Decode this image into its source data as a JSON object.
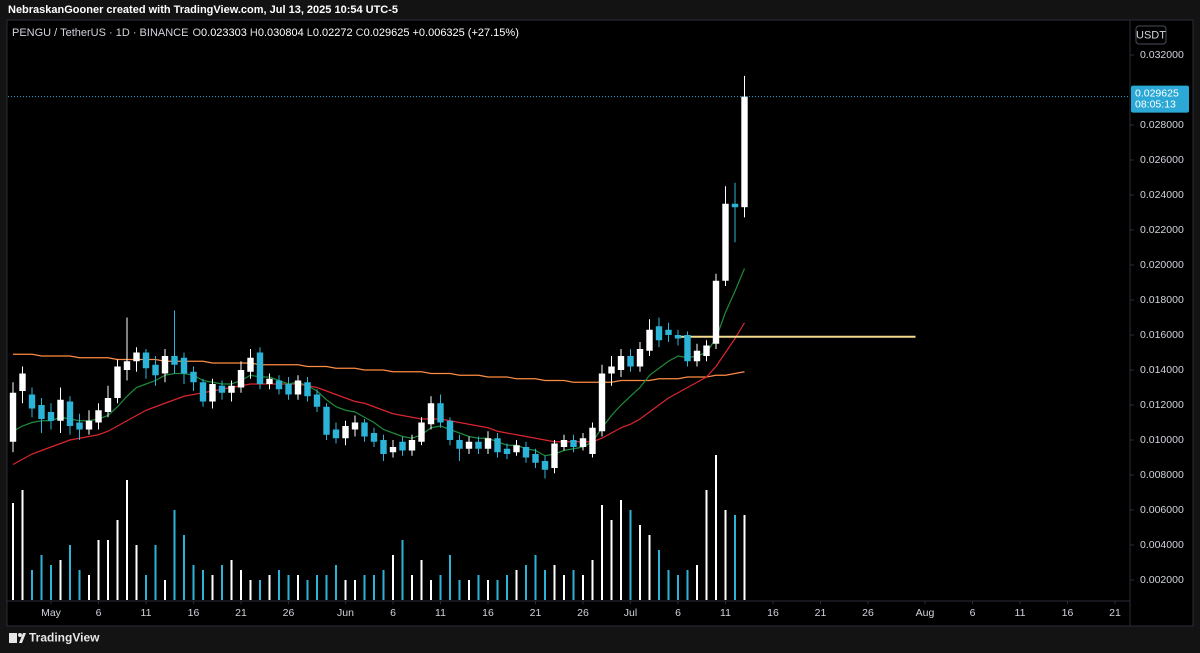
{
  "header": "NebraskanGooner created with TradingView.com, Jul 13, 2025 10:54 UTC-5",
  "currency": "USDT",
  "countdown": "08:05:13",
  "brand": "TradingView",
  "chart_data": {
    "type": "candlestick",
    "legend": {
      "symbol": "PENGU / TetherUS · 1D · BINANCE",
      "labels": [
        "O",
        "H",
        "L",
        "C"
      ],
      "change": "+0.006325",
      "change_pct": "(+27.15%)"
    },
    "x": [
      "2025-04-27",
      "2025-04-28",
      "2025-04-29",
      "2025-04-30",
      "2025-05-01",
      "2025-05-02",
      "2025-05-03",
      "2025-05-04",
      "2025-05-05",
      "2025-05-06",
      "2025-05-07",
      "2025-05-08",
      "2025-05-09",
      "2025-05-10",
      "2025-05-11",
      "2025-05-12",
      "2025-05-13",
      "2025-05-14",
      "2025-05-15",
      "2025-05-16",
      "2025-05-17",
      "2025-05-18",
      "2025-05-19",
      "2025-05-20",
      "2025-05-21",
      "2025-05-22",
      "2025-05-23",
      "2025-05-24",
      "2025-05-25",
      "2025-05-26",
      "2025-05-27",
      "2025-05-28",
      "2025-05-29",
      "2025-05-30",
      "2025-05-31",
      "2025-06-01",
      "2025-06-02",
      "2025-06-03",
      "2025-06-04",
      "2025-06-05",
      "2025-06-06",
      "2025-06-07",
      "2025-06-08",
      "2025-06-09",
      "2025-06-10",
      "2025-06-11",
      "2025-06-12",
      "2025-06-13",
      "2025-06-14",
      "2025-06-15",
      "2025-06-16",
      "2025-06-17",
      "2025-06-18",
      "2025-06-19",
      "2025-06-20",
      "2025-06-21",
      "2025-06-22",
      "2025-06-23",
      "2025-06-24",
      "2025-06-25",
      "2025-06-26",
      "2025-06-27",
      "2025-06-28",
      "2025-06-29",
      "2025-06-30",
      "2025-07-01",
      "2025-07-02",
      "2025-07-03",
      "2025-07-04",
      "2025-07-05",
      "2025-07-06",
      "2025-07-07",
      "2025-07-08",
      "2025-07-09",
      "2025-07-10",
      "2025-07-11",
      "2025-07-12",
      "2025-07-13"
    ],
    "open": [
      0.0099,
      0.0128,
      0.0126,
      0.012,
      0.0116,
      0.0111,
      0.0122,
      0.011,
      0.0106,
      0.011,
      0.0116,
      0.0124,
      0.014,
      0.0145,
      0.015,
      0.0143,
      0.0138,
      0.0148,
      0.0147,
      0.0139,
      0.0133,
      0.0122,
      0.0131,
      0.0127,
      0.013,
      0.0139,
      0.015,
      0.0132,
      0.0134,
      0.0132,
      0.0126,
      0.0133,
      0.0126,
      0.0119,
      0.0106,
      0.0101,
      0.0106,
      0.011,
      0.0104,
      0.01,
      0.0093,
      0.0099,
      0.0094,
      0.0099,
      0.0109,
      0.0121,
      0.0111,
      0.01,
      0.0095,
      0.0099,
      0.0095,
      0.0101,
      0.0095,
      0.0093,
      0.0096,
      0.0092,
      0.0088,
      0.0084,
      0.0096,
      0.01,
      0.0096,
      0.0092,
      0.0105,
      0.0138,
      0.014,
      0.0148,
      0.0142,
      0.0151,
      0.0165,
      0.0163,
      0.016,
      0.016,
      0.0145,
      0.0148,
      0.0155,
      0.0191,
      0.0235,
      0.023303
    ],
    "high": [
      0.0133,
      0.0142,
      0.013,
      0.0124,
      0.0121,
      0.013,
      0.0125,
      0.0115,
      0.0117,
      0.0121,
      0.0131,
      0.0146,
      0.017,
      0.0153,
      0.0152,
      0.0148,
      0.0152,
      0.0174,
      0.015,
      0.0142,
      0.0135,
      0.0135,
      0.0134,
      0.0134,
      0.0145,
      0.0152,
      0.0153,
      0.0138,
      0.0137,
      0.0136,
      0.0137,
      0.0136,
      0.0129,
      0.0121,
      0.011,
      0.0111,
      0.0114,
      0.0112,
      0.0107,
      0.0103,
      0.01,
      0.0102,
      0.0103,
      0.0113,
      0.0125,
      0.0126,
      0.0113,
      0.0103,
      0.0102,
      0.0102,
      0.0105,
      0.0104,
      0.0098,
      0.01,
      0.0099,
      0.0095,
      0.0091,
      0.01,
      0.0103,
      0.0103,
      0.0104,
      0.011,
      0.0143,
      0.0148,
      0.0152,
      0.0152,
      0.0156,
      0.0169,
      0.017,
      0.0167,
      0.0163,
      0.0162,
      0.0155,
      0.0157,
      0.0195,
      0.0245,
      0.0247,
      0.030804
    ],
    "low": [
      0.0093,
      0.0121,
      0.0113,
      0.0104,
      0.0106,
      0.0104,
      0.0103,
      0.01,
      0.0103,
      0.0106,
      0.0113,
      0.0121,
      0.0134,
      0.0139,
      0.0135,
      0.0131,
      0.0133,
      0.0138,
      0.0132,
      0.0128,
      0.0119,
      0.0118,
      0.0123,
      0.0122,
      0.0127,
      0.0135,
      0.0129,
      0.0129,
      0.0126,
      0.0123,
      0.0123,
      0.0122,
      0.0116,
      0.01,
      0.0098,
      0.0097,
      0.0102,
      0.0099,
      0.0096,
      0.0088,
      0.009,
      0.0091,
      0.0091,
      0.0097,
      0.0106,
      0.0107,
      0.0097,
      0.0088,
      0.0092,
      0.0092,
      0.0092,
      0.009,
      0.0089,
      0.0091,
      0.0087,
      0.0084,
      0.0078,
      0.0081,
      0.0094,
      0.0093,
      0.0094,
      0.009,
      0.0102,
      0.0131,
      0.0136,
      0.0139,
      0.0139,
      0.0148,
      0.0153,
      0.0156,
      0.0154,
      0.0142,
      0.0142,
      0.0145,
      0.0152,
      0.0188,
      0.0213,
      0.02272
    ],
    "close": [
      0.0127,
      0.0138,
      0.0118,
      0.0112,
      0.0111,
      0.0123,
      0.0108,
      0.0106,
      0.0111,
      0.0117,
      0.0124,
      0.0142,
      0.0145,
      0.015,
      0.0141,
      0.0137,
      0.0148,
      0.0143,
      0.0138,
      0.0133,
      0.0122,
      0.0132,
      0.0127,
      0.0131,
      0.014,
      0.0147,
      0.0132,
      0.0135,
      0.0129,
      0.0126,
      0.0134,
      0.0125,
      0.0119,
      0.0103,
      0.0101,
      0.0108,
      0.011,
      0.0102,
      0.0099,
      0.0092,
      0.0096,
      0.0094,
      0.01,
      0.011,
      0.0121,
      0.011,
      0.01,
      0.0095,
      0.0099,
      0.0095,
      0.0101,
      0.0093,
      0.0092,
      0.0097,
      0.009,
      0.0087,
      0.0083,
      0.0098,
      0.01,
      0.0096,
      0.0101,
      0.0107,
      0.0138,
      0.0142,
      0.0148,
      0.0142,
      0.0152,
      0.0163,
      0.0157,
      0.016,
      0.0158,
      0.0145,
      0.0151,
      0.0154,
      0.0191,
      0.0235,
      0.0233,
      0.029625
    ],
    "volume": [
      97,
      110,
      30,
      45,
      35,
      40,
      55,
      30,
      25,
      60,
      60,
      80,
      120,
      55,
      25,
      55,
      20,
      90,
      65,
      35,
      30,
      25,
      35,
      40,
      30,
      20,
      20,
      25,
      30,
      25,
      25,
      20,
      25,
      25,
      35,
      20,
      20,
      25,
      25,
      30,
      45,
      60,
      25,
      40,
      20,
      25,
      45,
      20,
      20,
      25,
      20,
      20,
      25,
      30,
      35,
      45,
      30,
      35,
      25,
      30,
      25,
      40,
      95,
      80,
      100,
      90,
      75,
      65,
      50,
      30,
      25,
      30,
      35,
      110,
      145,
      90,
      85,
      85
    ],
    "up_color": "#ffffff",
    "down_color": "#2bb3d8",
    "lines": [
      {
        "color": "#ff8c42",
        "values": [
          0.0149,
          0.0149,
          0.0149,
          0.0148,
          0.0148,
          0.0148,
          0.0148,
          0.0147,
          0.0147,
          0.0147,
          0.0147,
          0.0146,
          0.0146,
          0.0146,
          0.0146,
          0.0146,
          0.0145,
          0.0145,
          0.0145,
          0.0145,
          0.0145,
          0.0144,
          0.0144,
          0.0144,
          0.0144,
          0.0144,
          0.0143,
          0.0143,
          0.0143,
          0.0143,
          0.0143,
          0.0142,
          0.0142,
          0.0142,
          0.0141,
          0.0141,
          0.0141,
          0.014,
          0.014,
          0.014,
          0.0139,
          0.0139,
          0.0139,
          0.0139,
          0.0138,
          0.0138,
          0.0138,
          0.0137,
          0.0137,
          0.0137,
          0.0136,
          0.0136,
          0.0136,
          0.0135,
          0.0135,
          0.0135,
          0.0134,
          0.0134,
          0.0134,
          0.0133,
          0.0133,
          0.0133,
          0.0133,
          0.0133,
          0.0134,
          0.0134,
          0.0134,
          0.0134,
          0.0135,
          0.0135,
          0.0135,
          0.0136,
          0.0136,
          0.0136,
          0.0137,
          0.0137,
          0.0138,
          0.0139
        ]
      },
      {
        "color": "#d9262e",
        "values": [
          0.0086,
          0.0089,
          0.0092,
          0.0094,
          0.0096,
          0.0098,
          0.01,
          0.0101,
          0.0102,
          0.0103,
          0.0105,
          0.0108,
          0.0111,
          0.0114,
          0.0117,
          0.0119,
          0.0121,
          0.0123,
          0.0125,
          0.0126,
          0.0127,
          0.0128,
          0.0129,
          0.013,
          0.0131,
          0.0132,
          0.0132,
          0.0132,
          0.0132,
          0.0132,
          0.0132,
          0.0131,
          0.013,
          0.0128,
          0.0126,
          0.0124,
          0.0122,
          0.0121,
          0.0119,
          0.0117,
          0.0115,
          0.0114,
          0.0113,
          0.0112,
          0.0112,
          0.0112,
          0.0111,
          0.011,
          0.0109,
          0.0108,
          0.0107,
          0.0105,
          0.0104,
          0.0103,
          0.0102,
          0.0101,
          0.01,
          0.0099,
          0.0099,
          0.0099,
          0.0099,
          0.0099,
          0.0101,
          0.0104,
          0.0107,
          0.0109,
          0.0112,
          0.0116,
          0.012,
          0.0124,
          0.0127,
          0.013,
          0.0133,
          0.0136,
          0.0142,
          0.015,
          0.0158,
          0.0167
        ]
      },
      {
        "color": "#1e8a3c",
        "values": [
          0.0105,
          0.0108,
          0.011,
          0.0111,
          0.0111,
          0.0113,
          0.0112,
          0.0111,
          0.0111,
          0.0112,
          0.0114,
          0.0119,
          0.0125,
          0.013,
          0.0132,
          0.0134,
          0.0137,
          0.0138,
          0.0138,
          0.0137,
          0.0134,
          0.0133,
          0.0132,
          0.0132,
          0.0134,
          0.0137,
          0.0136,
          0.0136,
          0.0134,
          0.0132,
          0.0133,
          0.0131,
          0.0128,
          0.0123,
          0.0119,
          0.0117,
          0.0116,
          0.0113,
          0.011,
          0.0106,
          0.0104,
          0.0102,
          0.0101,
          0.0103,
          0.0107,
          0.0108,
          0.0106,
          0.0104,
          0.0102,
          0.0101,
          0.0101,
          0.0099,
          0.0097,
          0.0097,
          0.0095,
          0.0094,
          0.0091,
          0.0092,
          0.0094,
          0.0095,
          0.0096,
          0.0099,
          0.0107,
          0.0114,
          0.012,
          0.0125,
          0.013,
          0.0137,
          0.0141,
          0.0145,
          0.0148,
          0.0147,
          0.0148,
          0.015,
          0.0158,
          0.0173,
          0.0185,
          0.0198
        ]
      }
    ],
    "hline": {
      "value": 0.0159,
      "x": [
        "2025-07-06",
        "2025-07-31"
      ],
      "color": "#f3dc8e"
    },
    "price_line_color": "#2ba8d6",
    "xlim": [
      "2025-04-27",
      "2025-08-22"
    ],
    "xticks": [
      {
        "value": "2025-05-01",
        "label": "May"
      },
      {
        "value": "2025-05-06",
        "label": "6"
      },
      {
        "value": "2025-05-11",
        "label": "11"
      },
      {
        "value": "2025-05-16",
        "label": "16"
      },
      {
        "value": "2025-05-21",
        "label": "21"
      },
      {
        "value": "2025-05-26",
        "label": "26"
      },
      {
        "value": "2025-06-01",
        "label": "Jun"
      },
      {
        "value": "2025-06-06",
        "label": "6"
      },
      {
        "value": "2025-06-11",
        "label": "11"
      },
      {
        "value": "2025-06-16",
        "label": "16"
      },
      {
        "value": "2025-06-21",
        "label": "21"
      },
      {
        "value": "2025-06-26",
        "label": "26"
      },
      {
        "value": "2025-07-01",
        "label": "Jul"
      },
      {
        "value": "2025-07-06",
        "label": "6"
      },
      {
        "value": "2025-07-11",
        "label": "11"
      },
      {
        "value": "2025-07-16",
        "label": "16"
      },
      {
        "value": "2025-07-21",
        "label": "21"
      },
      {
        "value": "2025-07-26",
        "label": "26"
      },
      {
        "value": "2025-08-01",
        "label": "Aug"
      },
      {
        "value": "2025-08-06",
        "label": "6"
      },
      {
        "value": "2025-08-11",
        "label": "11"
      },
      {
        "value": "2025-08-16",
        "label": "16"
      },
      {
        "value": "2025-08-21",
        "label": "21"
      }
    ],
    "ylim": [
      0.001,
      0.034
    ],
    "yticks": [
      {
        "value": 0.002,
        "label": "0.002000"
      },
      {
        "value": 0.004,
        "label": "0.004000"
      },
      {
        "value": 0.006,
        "label": "0.006000"
      },
      {
        "value": 0.008,
        "label": "0.008000"
      },
      {
        "value": 0.01,
        "label": "0.010000"
      },
      {
        "value": 0.012,
        "label": "0.012000"
      },
      {
        "value": 0.014,
        "label": "0.014000"
      },
      {
        "value": 0.016,
        "label": "0.016000"
      },
      {
        "value": 0.018,
        "label": "0.018000"
      },
      {
        "value": 0.02,
        "label": "0.020000"
      },
      {
        "value": 0.022,
        "label": "0.022000"
      },
      {
        "value": 0.024,
        "label": "0.024000"
      },
      {
        "value": 0.026,
        "label": "0.026000"
      },
      {
        "value": 0.028,
        "label": "0.028000"
      },
      {
        "value": 0.03,
        "label": "0.030000"
      },
      {
        "value": 0.032,
        "label": "0.032000"
      }
    ],
    "grid": false
  }
}
